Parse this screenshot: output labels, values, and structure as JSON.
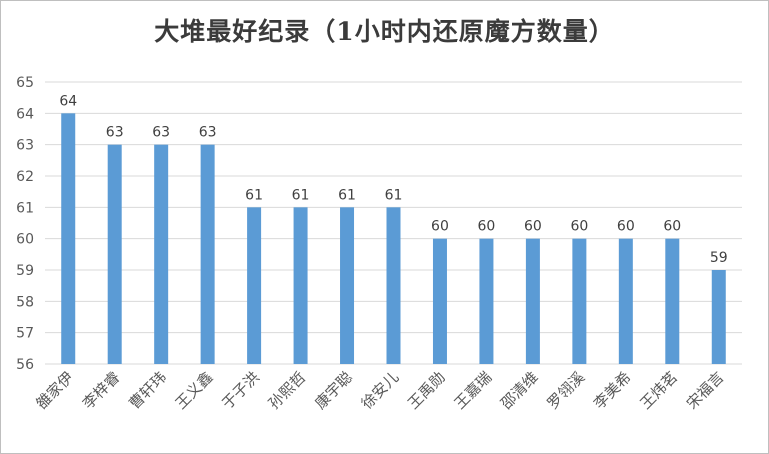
{
  "chart_data": {
    "type": "bar",
    "title": "大堆最好纪录（1小时内还原魔方数量）",
    "categories": [
      "雒家伊",
      "李梓睿",
      "曹轩玮",
      "王义鑫",
      "于子洪",
      "孙熙哲",
      "康宇聪",
      "徐安儿",
      "王禹勋",
      "王嘉瑞",
      "邵清维",
      "罗翎溪",
      "李美希",
      "王炜茗",
      "宋福言"
    ],
    "values": [
      64,
      63,
      63,
      63,
      61,
      61,
      61,
      61,
      60,
      60,
      60,
      60,
      60,
      60,
      59
    ],
    "ylim": [
      56,
      65
    ],
    "yticks": [
      "56",
      "57",
      "58",
      "59",
      "60",
      "61",
      "62",
      "63",
      "64",
      "65"
    ],
    "xlabel": "",
    "ylabel": "",
    "grid": true,
    "bar_color": "#5b9bd5",
    "grid_color": "#d9d9d9"
  }
}
